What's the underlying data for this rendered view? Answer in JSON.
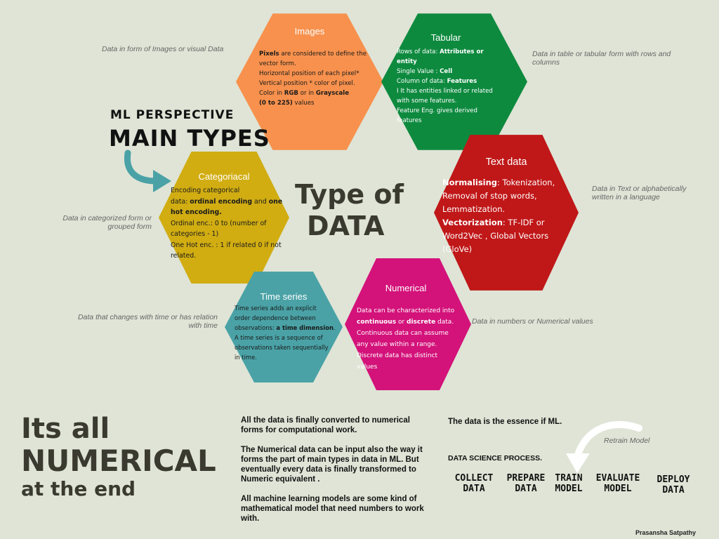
{
  "heading": {
    "perspective": "ML PERSPECTIVE",
    "main": "MAIN TYPES",
    "center_line1": "Type of",
    "center_line2": "DATA"
  },
  "hexagons": {
    "images": {
      "title": "Images",
      "color": "#f7914d",
      "lines": [
        [
          {
            "t": "Pixels",
            "b": true
          },
          {
            "t": " are considered to define the"
          }
        ],
        [
          {
            "t": "vector form."
          }
        ],
        [
          {
            "t": "Horizontal position of each pixel*"
          }
        ],
        [
          {
            "t": "Vertical position * color of pixel."
          }
        ],
        [
          {
            "t": "Color in "
          },
          {
            "t": "RGB",
            "b": true
          },
          {
            "t": " or in "
          },
          {
            "t": "Grayscale",
            "b": true
          }
        ],
        [
          {
            "t": "(0 to 225)",
            "b": true
          },
          {
            "t": " values"
          }
        ]
      ]
    },
    "tabular": {
      "title": "Tabular",
      "color": "#0e8a3f",
      "lines": [
        [
          {
            "t": "Rows of data: "
          },
          {
            "t": "Attributes  or",
            "b": true
          }
        ],
        [
          {
            "t": "entity",
            "b": true
          }
        ],
        [
          {
            "t": "Single Value : "
          },
          {
            "t": "Cell",
            "b": true
          }
        ],
        [
          {
            "t": "Column of data: "
          },
          {
            "t": "Features",
            "b": true
          }
        ],
        [
          {
            "t": "I It has entities linked or related"
          }
        ],
        [
          {
            "t": "with some features."
          }
        ],
        [
          {
            "t": "Feature Eng. gives derived"
          }
        ],
        [
          {
            "t": "features"
          }
        ]
      ]
    },
    "text": {
      "title": "Text data",
      "color": "#c01718",
      "lines": [
        [
          {
            "t": "Normalising",
            "b": true
          },
          {
            "t": ": Tokenization,"
          }
        ],
        [
          {
            "t": "Removal of stop words,"
          }
        ],
        [
          {
            "t": "Lemmatization."
          }
        ],
        [
          {
            "t": "Vectorization",
            "b": true
          },
          {
            "t": ": TF-IDF or"
          }
        ],
        [
          {
            "t": "Word2Vec , Global Vectors"
          }
        ],
        [
          {
            "t": "(GloVe)"
          }
        ]
      ]
    },
    "categorical": {
      "title": "Categoriacal",
      "color": "#d1ad12",
      "lines": [
        [
          {
            "t": "Encoding categorical"
          }
        ],
        [
          {
            "t": "data: "
          },
          {
            "t": "ordinal encoding",
            "b": true
          },
          {
            "t": " and "
          },
          {
            "t": "one",
            "b": true
          }
        ],
        [
          {
            "t": "hot encoding.",
            "b": true
          }
        ],
        [
          {
            "t": "Ordinal enc.: 0 to (number of"
          }
        ],
        [
          {
            "t": "categories - 1)"
          }
        ],
        [
          {
            "t": "One Hot enc. : 1 if related 0 if not"
          }
        ],
        [
          {
            "t": "related."
          }
        ]
      ]
    },
    "timeseries": {
      "title": "Time series",
      "color": "#4aa2a6",
      "lines": [
        [
          {
            "t": "Time series adds an explicit"
          }
        ],
        [
          {
            "t": "order dependence between"
          }
        ],
        [
          {
            "t": "observations: "
          },
          {
            "t": "a time dimension",
            "b": true
          },
          {
            "t": "."
          }
        ],
        [
          {
            "t": "A time series is a sequence of"
          }
        ],
        [
          {
            "t": "observations taken sequentially"
          }
        ],
        [
          {
            "t": "in time."
          }
        ]
      ]
    },
    "numerical": {
      "title": "Numerical",
      "color": "#d3127a",
      "lines": [
        [
          {
            "t": "Data can be characterized into"
          }
        ],
        [
          {
            "t": "continuous",
            "b": true
          },
          {
            "t": " or "
          },
          {
            "t": "discrete",
            "b": true
          },
          {
            "t": " data."
          }
        ],
        [
          {
            "t": "Continuous data can assume"
          }
        ],
        [
          {
            "t": "any value within a range."
          }
        ],
        [
          {
            "t": "Discrete data has distinct"
          }
        ],
        [
          {
            "t": "values"
          }
        ]
      ]
    }
  },
  "notes": {
    "images": "Data in form of Images or visual Data",
    "tabular": "Data in table or tabular form with rows and columns",
    "text": "Data in Text or  alphabetically written in a language",
    "categorical": "Data in categorized form  or grouped form",
    "timeseries": "Data that changes with time or has relation with time",
    "numerical": "Data in  numbers or Numerical values"
  },
  "bottom": {
    "big_line1": "Its all",
    "big_line2": "NUMERICAL",
    "big_line3": "at the end",
    "para1": "All the data is finally converted to numerical forms for computational work.",
    "para2": " The Numerical data can be input also the way it forms the part of main types in data in ML. But eventually every data is finally transformed to Numeric equivalent .",
    "para3": "All machine learning models are some kind of mathematical model that need numbers to work with.",
    "essence": "The data is the essence if ML.",
    "process_title": "DATA SCIENCE PROCESS.",
    "retrain": "Retrain Model",
    "steps": [
      {
        "l1": "COLLECT",
        "l2": "DATA"
      },
      {
        "l1": "PREPARE",
        "l2": "DATA"
      },
      {
        "l1": "TRAIN",
        "l2": "MODEL"
      },
      {
        "l1": "EVALUATE",
        "l2": "MODEL"
      },
      {
        "l1": "DEPLOY",
        "l2": "DATA"
      }
    ],
    "author": "Prasansha Satpathy"
  },
  "colors": {
    "background": "#dfe4d6",
    "arrow_teal": "#4aa2a6",
    "heading_dark": "#3a3a30"
  }
}
